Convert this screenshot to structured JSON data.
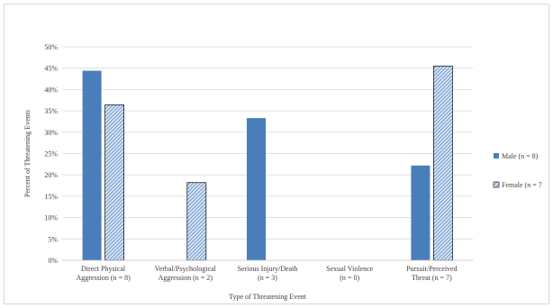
{
  "chart_data": {
    "type": "bar",
    "title": "",
    "xlabel": "Type of Threatening Event",
    "ylabel": "Percent of Threatening Events",
    "ylim": [
      0,
      50
    ],
    "ytick_step": 5,
    "ytick_labels": [
      "0%",
      "5%",
      "10%",
      "15%",
      "20%",
      "25%",
      "30%",
      "35%",
      "40%",
      "45%",
      "50%"
    ],
    "grid": true,
    "legend_position": "right",
    "categories": [
      [
        "Direct Physical",
        "Aggression (n = 8)"
      ],
      [
        "Verbal/Psychological",
        "Aggression (n = 2)"
      ],
      [
        "Serious Injury/Death",
        "(n = 3)"
      ],
      [
        "Sexual Violence",
        "(n = 0)"
      ],
      [
        "Pursuit/Perceived",
        "Threat (n = 7)"
      ]
    ],
    "series": [
      {
        "name": "Male (n = 8)",
        "values": [
          44.4,
          0,
          33.3,
          0,
          22.2
        ],
        "color": "#4a7ebb",
        "pattern": "solid"
      },
      {
        "name": "Female (n = 7",
        "values": [
          36.4,
          18.2,
          0,
          0,
          45.5
        ],
        "color": "#4a7ebb",
        "pattern": "hatched"
      }
    ]
  }
}
